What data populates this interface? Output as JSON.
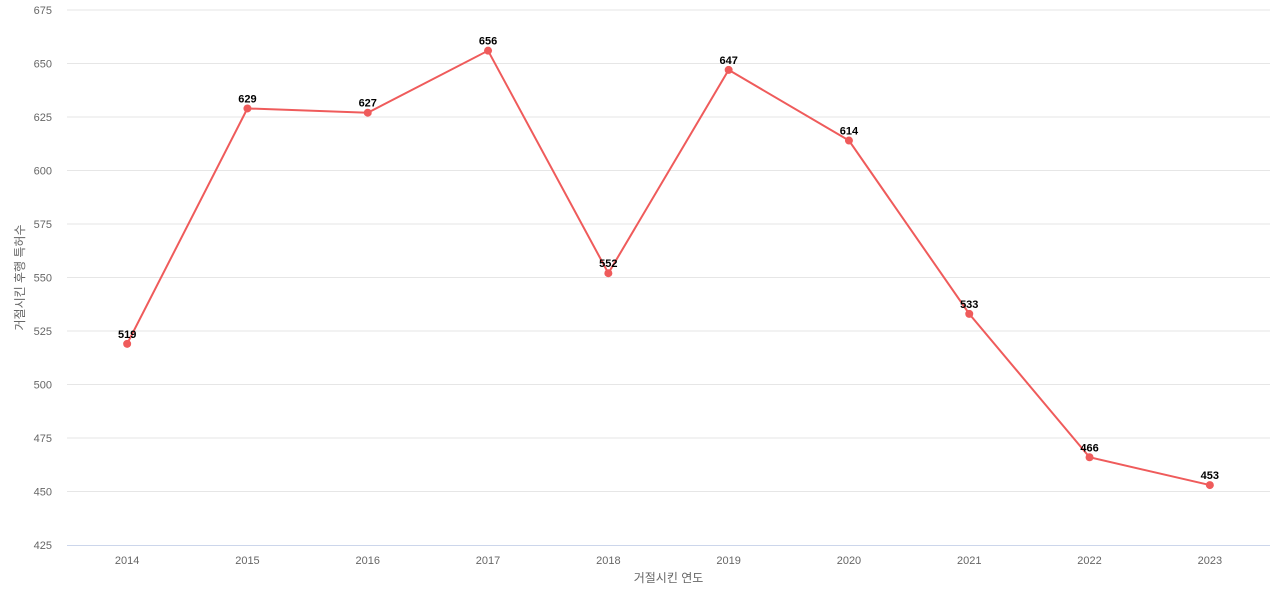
{
  "chart_data": {
    "type": "line",
    "categories": [
      "2014",
      "2015",
      "2016",
      "2017",
      "2018",
      "2019",
      "2020",
      "2021",
      "2022",
      "2023"
    ],
    "series": [
      {
        "values": [
          519,
          629,
          627,
          656,
          552,
          647,
          614,
          533,
          466,
          453
        ]
      }
    ],
    "data_labels": [
      "519",
      "629",
      "627",
      "656",
      "552",
      "647",
      "614",
      "533",
      "466",
      "453"
    ],
    "xlabel": "거절시킨 연도",
    "ylabel": "거절시킨 후행 특허수",
    "ylim": [
      425,
      675
    ],
    "yticks": [
      "425",
      "450",
      "475",
      "500",
      "525",
      "550",
      "575",
      "600",
      "625",
      "650",
      "675"
    ],
    "grid": true,
    "legend": "none",
    "colors": {
      "line": "#ef5b5b",
      "grid": "#e6e6e6",
      "axis": "#ccd6eb",
      "tick_text": "#666666",
      "label_text": "#000000"
    }
  }
}
